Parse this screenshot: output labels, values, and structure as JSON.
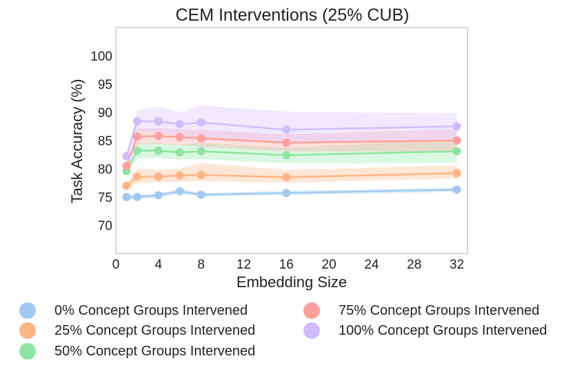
{
  "chart_data": {
    "type": "line",
    "title": "CEM Interventions (25% CUB)",
    "xlabel": "Embedding Size",
    "ylabel": "Task Accuracy (%)",
    "xlim": [
      0,
      33
    ],
    "ylim": [
      65,
      105
    ],
    "xticks": [
      0,
      4,
      8,
      12,
      16,
      20,
      24,
      28,
      32
    ],
    "yticks": [
      70,
      75,
      80,
      85,
      90,
      95,
      100
    ],
    "grid": false,
    "legend_position": "bottom",
    "x": [
      1,
      2,
      4,
      6,
      8,
      16,
      32
    ],
    "series": [
      {
        "name": "0% Concept Groups Intervened",
        "color": "#a1c9f4",
        "values": [
          75.0,
          75.0,
          75.3,
          76.0,
          75.4,
          75.7,
          76.3
        ],
        "lower": [
          74.6,
          74.6,
          74.9,
          75.6,
          75.1,
          75.3,
          75.9
        ],
        "upper": [
          75.4,
          75.4,
          75.7,
          76.4,
          75.7,
          76.1,
          76.7
        ]
      },
      {
        "name": "25% Concept Groups Intervened",
        "color": "#ffb482",
        "values": [
          77.0,
          78.6,
          78.6,
          78.8,
          78.9,
          78.5,
          79.2
        ],
        "lower": [
          76.6,
          77.4,
          77.6,
          77.7,
          77.8,
          77.5,
          78.3
        ],
        "upper": [
          77.4,
          80.0,
          79.8,
          80.0,
          81.0,
          79.8,
          80.6
        ]
      },
      {
        "name": "50% Concept Groups Intervened",
        "color": "#8de5a1",
        "values": [
          79.6,
          83.2,
          83.2,
          82.9,
          83.1,
          82.4,
          83.1
        ],
        "lower": [
          79.2,
          81.8,
          81.9,
          81.6,
          81.7,
          81.0,
          81.0
        ],
        "upper": [
          80.0,
          84.5,
          84.6,
          84.3,
          84.6,
          83.7,
          85.2
        ]
      },
      {
        "name": "75% Concept Groups Intervened",
        "color": "#ff9f9b",
        "values": [
          80.5,
          85.7,
          85.8,
          85.6,
          85.4,
          84.6,
          85.0
        ],
        "lower": [
          80.1,
          84.3,
          84.4,
          84.2,
          83.9,
          83.1,
          83.0
        ],
        "upper": [
          80.9,
          87.1,
          87.2,
          87.0,
          86.9,
          86.1,
          87.0
        ]
      },
      {
        "name": "100% Concept Groups Intervened",
        "color": "#d0bbff",
        "values": [
          82.2,
          88.4,
          88.4,
          87.9,
          88.2,
          86.9,
          87.5
        ],
        "lower": [
          81.8,
          86.8,
          86.3,
          85.8,
          85.6,
          84.5,
          85.2
        ],
        "upper": [
          82.6,
          90.3,
          91.0,
          90.0,
          91.2,
          90.1,
          89.8
        ]
      }
    ]
  }
}
